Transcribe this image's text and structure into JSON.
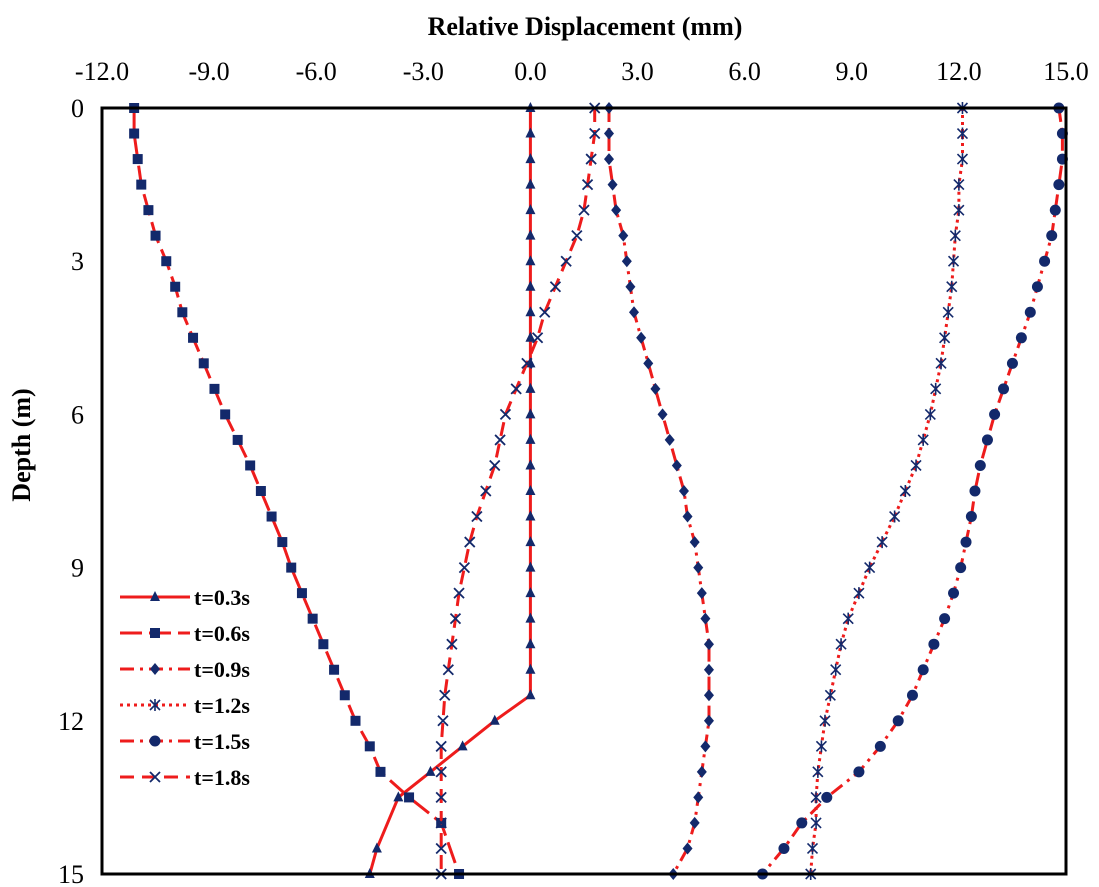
{
  "chart_data": {
    "type": "line",
    "xlabel": "Relative Displacement (mm)",
    "ylabel": "Depth (m)",
    "xlim": [
      -12,
      15
    ],
    "ylim": [
      15,
      0
    ],
    "x_ticks": [
      "-12.0",
      "-9.0",
      "-6.0",
      "-3.0",
      "0.0",
      "3.0",
      "6.0",
      "9.0",
      "12.0",
      "15.0"
    ],
    "y_ticks": [
      "0",
      "3",
      "6",
      "9",
      "12",
      "15"
    ],
    "x_axis_position": "top",
    "y_inverted": true,
    "grid": false,
    "legend_position": "bottom-left",
    "line_color": "#ee1c1c",
    "marker_color": "#13296b",
    "series": [
      {
        "name": "t=0.3s",
        "marker": "triangle",
        "dash": "solid",
        "x": [
          0,
          0,
          0,
          0,
          0,
          0,
          0,
          0,
          0,
          0,
          0,
          0,
          0,
          0,
          0,
          0,
          0,
          0,
          0,
          0,
          0,
          0,
          0,
          0.0,
          -1.0,
          -1.9,
          -2.8,
          -3.7,
          -4.3,
          -4.5
        ],
        "y": [
          0,
          0.5,
          1,
          1.5,
          2,
          2.5,
          3,
          3.5,
          4,
          4.5,
          5,
          5.5,
          6,
          6.5,
          7,
          7.5,
          8,
          8.5,
          9,
          9.5,
          10,
          10.5,
          11,
          11.5,
          12,
          12.5,
          13,
          13.5,
          14.5,
          15
        ]
      },
      {
        "name": "t=0.6s",
        "marker": "square",
        "dash": "longdash",
        "x": [
          -11.1,
          -11.1,
          -11.0,
          -10.9,
          -10.7,
          -10.5,
          -10.2,
          -9.95,
          -9.75,
          -9.45,
          -9.15,
          -8.85,
          -8.55,
          -8.2,
          -7.85,
          -7.55,
          -7.25,
          -6.95,
          -6.7,
          -6.4,
          -6.1,
          -5.8,
          -5.5,
          -5.2,
          -4.9,
          -4.5,
          -4.2,
          -3.4,
          -2.5,
          -2.0
        ],
        "y": [
          0,
          0.5,
          1,
          1.5,
          2,
          2.5,
          3,
          3.5,
          4,
          4.5,
          5,
          5.5,
          6,
          6.5,
          7,
          7.5,
          8,
          8.5,
          9,
          9.5,
          10,
          10.5,
          11,
          11.5,
          12,
          12.5,
          13,
          13.5,
          14,
          15
        ]
      },
      {
        "name": "t=0.9s",
        "marker": "diamond",
        "dash": "dashdot",
        "x": [
          2.2,
          2.2,
          2.2,
          2.3,
          2.4,
          2.6,
          2.7,
          2.8,
          2.9,
          3.1,
          3.3,
          3.5,
          3.7,
          3.9,
          4.1,
          4.3,
          4.4,
          4.6,
          4.7,
          4.8,
          4.9,
          5.0,
          5.0,
          5.0,
          5.0,
          4.9,
          4.8,
          4.7,
          4.6,
          4.4,
          4.0
        ],
        "y": [
          0,
          0.5,
          1,
          1.5,
          2,
          2.5,
          3,
          3.5,
          4,
          4.5,
          5,
          5.5,
          6,
          6.5,
          7,
          7.5,
          8,
          8.5,
          9,
          9.5,
          10,
          10.5,
          11,
          11.5,
          12,
          12.5,
          13,
          13.5,
          14,
          14.5,
          15
        ]
      },
      {
        "name": "t=1.2s",
        "marker": "star",
        "dash": "dotted",
        "x": [
          12.1,
          12.1,
          12.1,
          12.0,
          12.0,
          11.9,
          11.85,
          11.8,
          11.7,
          11.6,
          11.5,
          11.35,
          11.2,
          11.0,
          10.8,
          10.5,
          10.2,
          9.85,
          9.5,
          9.2,
          8.9,
          8.7,
          8.55,
          8.4,
          8.25,
          8.15,
          8.05,
          8.0,
          8.0,
          7.9,
          7.85
        ],
        "y": [
          0,
          0.5,
          1,
          1.5,
          2,
          2.5,
          3,
          3.5,
          4,
          4.5,
          5,
          5.5,
          6,
          6.5,
          7,
          7.5,
          8,
          8.5,
          9,
          9.5,
          10,
          10.5,
          11,
          11.5,
          12,
          12.5,
          13,
          13.5,
          14,
          14.5,
          15
        ]
      },
      {
        "name": "t=1.5s",
        "marker": "circle",
        "dash": "dashdot",
        "x": [
          14.8,
          14.9,
          14.9,
          14.8,
          14.7,
          14.6,
          14.4,
          14.2,
          14.0,
          13.75,
          13.5,
          13.25,
          13.0,
          12.8,
          12.6,
          12.45,
          12.35,
          12.2,
          12.05,
          11.85,
          11.6,
          11.3,
          11.0,
          10.7,
          10.3,
          9.8,
          9.2,
          8.3,
          7.6,
          7.1,
          6.5
        ],
        "y": [
          0,
          0.5,
          1,
          1.5,
          2,
          2.5,
          3,
          3.5,
          4,
          4.5,
          5,
          5.5,
          6,
          6.5,
          7,
          7.5,
          8,
          8.5,
          9,
          9.5,
          10,
          10.5,
          11,
          11.5,
          12,
          12.5,
          13,
          13.5,
          14,
          14.5,
          15
        ]
      },
      {
        "name": "t=1.8s",
        "marker": "x",
        "dash": "dashed",
        "x": [
          1.8,
          1.8,
          1.7,
          1.6,
          1.5,
          1.3,
          1.0,
          0.7,
          0.4,
          0.2,
          -0.1,
          -0.4,
          -0.7,
          -0.85,
          -1.0,
          -1.25,
          -1.5,
          -1.7,
          -1.85,
          -2.0,
          -2.1,
          -2.2,
          -2.3,
          -2.4,
          -2.45,
          -2.5,
          -2.5,
          -2.5,
          -2.5,
          -2.5,
          -2.5
        ],
        "y": [
          0,
          0.5,
          1,
          1.5,
          2,
          2.5,
          3,
          3.5,
          4,
          4.5,
          5,
          5.5,
          6,
          6.5,
          7,
          7.5,
          8,
          8.5,
          9,
          9.5,
          10,
          10.5,
          11,
          11.5,
          12,
          12.5,
          13,
          13.5,
          14,
          14.5,
          15
        ]
      }
    ]
  }
}
